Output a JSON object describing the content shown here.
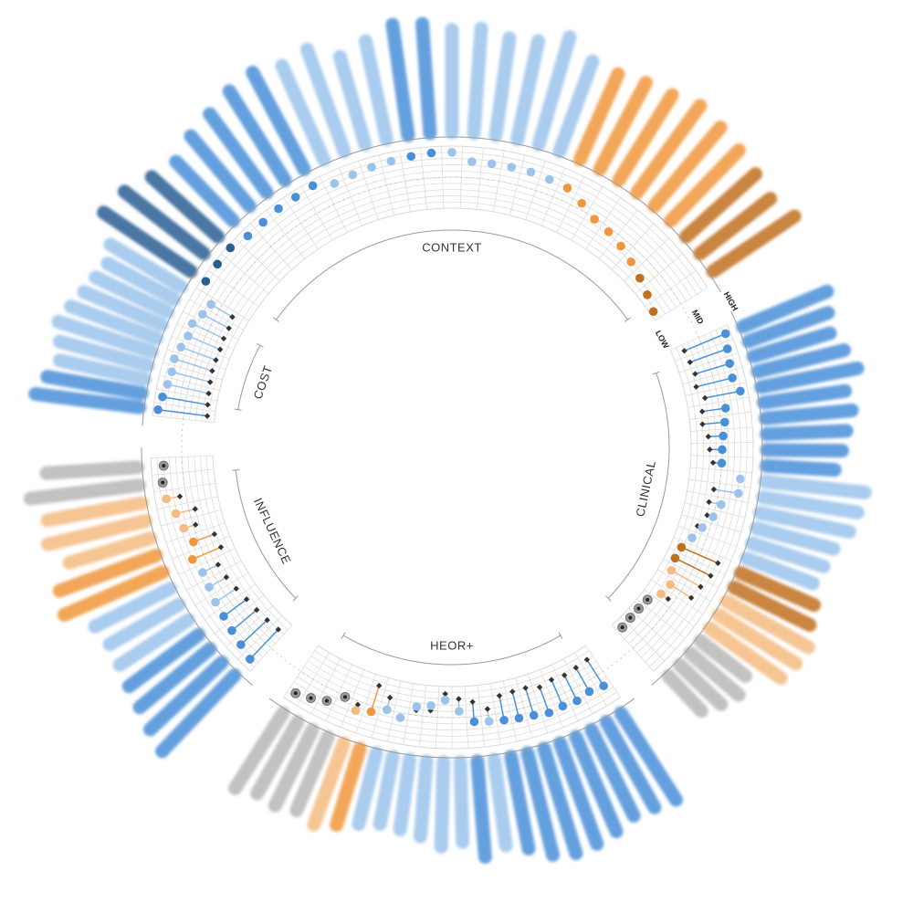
{
  "chart_data": {
    "type": "radial-dumbbell",
    "colors": {
      "blue": "#4a90d9",
      "light_blue": "#9cc3ec",
      "dark_blue": "#2a5d93",
      "orange": "#f0973d",
      "light_orange": "#f5bb82",
      "dark_orange": "#c0701e",
      "gray": "#b8b8b8",
      "grid": "#d9d9d9",
      "marker": "#333333"
    },
    "levels": [
      "LOW",
      "MID",
      "HIGH"
    ],
    "sections": [
      {
        "name": "CONTEXT",
        "start_deg": -58,
        "end_deg": 58,
        "label_deg": 0
      },
      {
        "name": "CLINICAL",
        "start_deg": 66,
        "end_deg": 138,
        "label_deg": 102
      },
      {
        "name": "HEOR+",
        "start_deg": 146,
        "end_deg": 214,
        "label_deg": 180
      },
      {
        "name": "INFLUENCE",
        "start_deg": 222,
        "end_deg": 268,
        "label_deg": 245
      },
      {
        "name": "COST",
        "start_deg": 276,
        "end_deg": 302,
        "label_deg": 289
      }
    ],
    "items": [
      {
        "section": "CONTEXT",
        "a": 0.93,
        "bar": 0.92,
        "color": "dark_blue"
      },
      {
        "section": "CONTEXT",
        "a": 0.94,
        "bar": 0.88,
        "color": "dark_blue"
      },
      {
        "section": "CONTEXT",
        "a": 0.95,
        "bar": 0.78,
        "color": "dark_blue"
      },
      {
        "section": "CONTEXT",
        "a": 0.88,
        "bar": 0.72,
        "color": "blue"
      },
      {
        "section": "CONTEXT",
        "a": 0.88,
        "bar": 0.8,
        "color": "blue"
      },
      {
        "section": "CONTEXT",
        "a": 0.9,
        "bar": 0.85,
        "color": "blue"
      },
      {
        "section": "CONTEXT",
        "a": 0.9,
        "bar": 0.92,
        "color": "blue"
      },
      {
        "section": "CONTEXT",
        "a": 0.92,
        "bar": 0.96,
        "color": "blue"
      },
      {
        "section": "CONTEXT",
        "a": 0.8,
        "bar": 0.9,
        "color": "light_blue"
      },
      {
        "section": "CONTEXT",
        "a": 0.82,
        "bar": 0.95,
        "color": "light_blue"
      },
      {
        "section": "CONTEXT",
        "a": 0.84,
        "bar": 0.8,
        "color": "light_blue"
      },
      {
        "section": "CONTEXT",
        "a": 0.86,
        "bar": 0.88,
        "color": "light_blue"
      },
      {
        "section": "CONTEXT",
        "a": 0.88,
        "bar": 0.98,
        "color": "blue"
      },
      {
        "section": "CONTEXT",
        "a": 0.9,
        "bar": 0.96,
        "color": "blue"
      },
      {
        "section": "CONTEXT",
        "a": 0.9,
        "bar": 0.9,
        "color": "light_blue"
      },
      {
        "section": "CONTEXT",
        "a": 0.76,
        "bar": 0.92,
        "color": "light_blue"
      },
      {
        "section": "CONTEXT",
        "a": 0.76,
        "bar": 0.86,
        "color": "light_blue"
      },
      {
        "section": "CONTEXT",
        "a": 0.76,
        "bar": 0.88,
        "color": "light_blue"
      },
      {
        "section": "CONTEXT",
        "a": 0.76,
        "bar": 0.98,
        "color": "light_blue"
      },
      {
        "section": "CONTEXT",
        "a": 0.74,
        "bar": 0.84,
        "color": "light_blue"
      },
      {
        "section": "CONTEXT",
        "a": 0.72,
        "bar": 0.82,
        "color": "orange"
      },
      {
        "section": "CONTEXT",
        "a": 0.6,
        "bar": 0.86,
        "color": "orange"
      },
      {
        "section": "CONTEXT",
        "a": 0.48,
        "bar": 0.88,
        "color": "orange"
      },
      {
        "section": "CONTEXT",
        "a": 0.44,
        "bar": 0.94,
        "color": "orange"
      },
      {
        "section": "CONTEXT",
        "a": 0.38,
        "bar": 0.9,
        "color": "orange"
      },
      {
        "section": "CONTEXT",
        "a": 0.3,
        "bar": 0.86,
        "color": "orange"
      },
      {
        "section": "CONTEXT",
        "a": 0.22,
        "bar": 0.82,
        "color": "dark_orange"
      },
      {
        "section": "CONTEXT",
        "a": 0.14,
        "bar": 0.78,
        "color": "dark_orange"
      },
      {
        "section": "CONTEXT",
        "a": 0.06,
        "bar": 0.86,
        "color": "dark_orange"
      },
      {
        "section": "CLINICAL",
        "a": 0.92,
        "b": 0.2,
        "bar": 0.8,
        "color": "blue"
      },
      {
        "section": "CLINICAL",
        "a": 0.86,
        "b": 0.22,
        "bar": 0.74,
        "color": "blue"
      },
      {
        "section": "CLINICAL",
        "a": 0.82,
        "b": 0.24,
        "bar": 0.7,
        "color": "blue"
      },
      {
        "section": "CLINICAL",
        "a": 0.8,
        "b": 0.2,
        "bar": 0.78,
        "color": "blue"
      },
      {
        "section": "CLINICAL",
        "a": 0.88,
        "b": 0.3,
        "bar": 0.86,
        "color": "blue"
      },
      {
        "section": "CLINICAL",
        "a": 0.6,
        "b": 0.22,
        "bar": 0.72,
        "color": "blue"
      },
      {
        "section": "CLINICAL",
        "a": 0.56,
        "b": 0.2,
        "bar": 0.76,
        "color": "blue"
      },
      {
        "section": "CLINICAL",
        "a": 0.52,
        "b": 0.28,
        "bar": 0.7,
        "color": "blue"
      },
      {
        "section": "CLINICAL",
        "a": 0.5,
        "b": 0.3,
        "bar": 0.66,
        "color": "blue"
      },
      {
        "section": "CLINICAL",
        "a": 0.5,
        "b": 0.36,
        "bar": 0.6,
        "color": "blue"
      },
      {
        "section": "CLINICAL",
        "a": 0.82,
        "b": 0.82,
        "bar": 0.88,
        "color": "light_blue"
      },
      {
        "section": "CLINICAL",
        "a": 0.82,
        "b": 0.42,
        "bar": 0.84,
        "color": "light_blue"
      },
      {
        "section": "CLINICAL",
        "a": 0.58,
        "b": 0.38,
        "bar": 0.8,
        "color": "light_blue"
      },
      {
        "section": "CLINICAL",
        "a": 0.5,
        "b": 0.4,
        "bar": 0.7,
        "color": "light_blue"
      },
      {
        "section": "CLINICAL",
        "a": 0.38,
        "b": 0.3,
        "bar": 0.66,
        "color": "light_blue"
      },
      {
        "section": "CLINICAL",
        "a": 0.28,
        "b": 0.3,
        "bar": 0.62,
        "color": "light_blue"
      },
      {
        "section": "CLINICAL",
        "a": 0.18,
        "b": 0.82,
        "bar": 0.7,
        "color": "dark_orange"
      },
      {
        "section": "CLINICAL",
        "a": 0.16,
        "b": 0.8,
        "bar": 0.74,
        "color": "dark_orange"
      },
      {
        "section": "CLINICAL",
        "a": 0.2,
        "b": 0.74,
        "bar": 0.82,
        "color": "light_orange"
      },
      {
        "section": "CLINICAL",
        "a": 0.3,
        "b": 0.7,
        "bar": 0.8,
        "color": "light_orange"
      },
      {
        "section": "CLINICAL",
        "a": 0.26,
        "b": 0.4,
        "bar": 0.76,
        "color": "light_orange"
      },
      {
        "section": "CLINICAL",
        "a": 0.14,
        "b": 0.14,
        "bar": 0.5,
        "color": "gray"
      },
      {
        "section": "CLINICAL",
        "a": 0.12,
        "b": 0.12,
        "bar": 0.56,
        "color": "gray"
      },
      {
        "section": "CLINICAL",
        "a": 0.12,
        "b": 0.12,
        "bar": 0.5,
        "color": "gray"
      },
      {
        "section": "CLINICAL",
        "a": 0.14,
        "b": 0.14,
        "bar": 0.42,
        "color": "gray"
      },
      {
        "section": "HEOR+",
        "a": 0.7,
        "b": 0.2,
        "bar": 0.9,
        "color": "blue"
      },
      {
        "section": "HEOR+",
        "a": 0.66,
        "b": 0.22,
        "bar": 0.86,
        "color": "blue"
      },
      {
        "section": "HEOR+",
        "a": 0.7,
        "b": 0.24,
        "bar": 0.84,
        "color": "blue"
      },
      {
        "section": "HEOR+",
        "a": 0.68,
        "b": 0.22,
        "bar": 0.9,
        "color": "blue"
      },
      {
        "section": "HEOR+",
        "a": 0.7,
        "b": 0.26,
        "bar": 0.94,
        "color": "blue"
      },
      {
        "section": "HEOR+",
        "a": 0.66,
        "b": 0.2,
        "bar": 0.96,
        "color": "blue"
      },
      {
        "section": "HEOR+",
        "a": 0.64,
        "b": 0.2,
        "bar": 0.92,
        "color": "blue"
      },
      {
        "section": "HEOR+",
        "a": 0.62,
        "b": 0.22,
        "bar": 0.82,
        "color": "blue"
      },
      {
        "section": "HEOR+",
        "a": 0.6,
        "b": 0.4,
        "bar": 0.76,
        "color": "light_blue"
      },
      {
        "section": "HEOR+",
        "a": 0.58,
        "b": 0.26,
        "bar": 0.84,
        "color": "blue"
      },
      {
        "section": "HEOR+",
        "a": 0.4,
        "b": 0.2,
        "bar": 0.7,
        "color": "light_blue"
      },
      {
        "section": "HEOR+",
        "a": 0.22,
        "b": 0.12,
        "bar": 0.74,
        "color": "light_blue"
      },
      {
        "section": "HEOR+",
        "a": 0.32,
        "b": 0.4,
        "bar": 0.66,
        "color": "light_blue"
      },
      {
        "section": "HEOR+",
        "a": 0.36,
        "b": 0.42,
        "bar": 0.62,
        "color": "light_blue"
      },
      {
        "section": "HEOR+",
        "a": 0.58,
        "b": 0.6,
        "bar": 0.6,
        "color": "light_blue"
      },
      {
        "section": "HEOR+",
        "a": 0.5,
        "b": 0.3,
        "bar": 0.64,
        "color": "light_blue"
      },
      {
        "section": "HEOR+",
        "a": 0.6,
        "b": 0.16,
        "bar": 0.7,
        "color": "orange"
      },
      {
        "section": "HEOR+",
        "a": 0.66,
        "b": 0.56,
        "bar": 0.76,
        "color": "light_orange"
      },
      {
        "section": "HEOR+",
        "a": 0.52,
        "b": 0.52,
        "bar": 0.7,
        "color": "gray"
      },
      {
        "section": "HEOR+",
        "a": 0.7,
        "b": 0.7,
        "bar": 0.74,
        "color": "gray"
      },
      {
        "section": "HEOR+",
        "a": 0.78,
        "b": 0.78,
        "bar": 0.72,
        "color": "gray"
      },
      {
        "section": "HEOR+",
        "a": 0.84,
        "b": 0.84,
        "bar": 0.78,
        "color": "gray"
      },
      {
        "section": "INFLUENCE",
        "a": 0.86,
        "b": 0.2,
        "bar": 0.92,
        "color": "blue"
      },
      {
        "section": "INFLUENCE",
        "a": 0.8,
        "b": 0.22,
        "bar": 0.86,
        "color": "blue"
      },
      {
        "section": "INFLUENCE",
        "a": 0.76,
        "b": 0.24,
        "bar": 0.8,
        "color": "blue"
      },
      {
        "section": "INFLUENCE",
        "a": 0.72,
        "b": 0.26,
        "bar": 0.76,
        "color": "blue"
      },
      {
        "section": "INFLUENCE",
        "a": 0.7,
        "b": 0.3,
        "bar": 0.72,
        "color": "light_blue"
      },
      {
        "section": "INFLUENCE",
        "a": 0.66,
        "b": 0.34,
        "bar": 0.7,
        "color": "light_blue"
      },
      {
        "section": "INFLUENCE",
        "a": 0.64,
        "b": 0.36,
        "bar": 0.74,
        "color": "light_blue"
      },
      {
        "section": "INFLUENCE",
        "a": 0.7,
        "b": 0.2,
        "bar": 0.94,
        "color": "orange"
      },
      {
        "section": "INFLUENCE",
        "a": 0.58,
        "b": 0.22,
        "bar": 0.9,
        "color": "orange"
      },
      {
        "section": "INFLUENCE",
        "a": 0.66,
        "b": 0.46,
        "bar": 0.74,
        "color": "light_orange"
      },
      {
        "section": "INFLUENCE",
        "a": 0.72,
        "b": 0.4,
        "bar": 0.88,
        "color": "light_orange"
      },
      {
        "section": "INFLUENCE",
        "a": 0.82,
        "b": 0.6,
        "bar": 0.84,
        "color": "light_orange"
      },
      {
        "section": "INFLUENCE",
        "a": 0.84,
        "b": 0.84,
        "bar": 0.96,
        "color": "gray"
      },
      {
        "section": "INFLUENCE",
        "a": 0.8,
        "b": 0.8,
        "bar": 0.8,
        "color": "gray"
      },
      {
        "section": "COST",
        "a": 0.92,
        "b": 0.12,
        "bar": 0.92,
        "color": "blue"
      },
      {
        "section": "COST",
        "a": 0.88,
        "b": 0.14,
        "bar": 0.84,
        "color": "blue"
      },
      {
        "section": "COST",
        "a": 0.84,
        "b": 0.16,
        "bar": 0.76,
        "color": "light_blue"
      },
      {
        "section": "COST",
        "a": 0.82,
        "b": 0.18,
        "bar": 0.8,
        "color": "light_blue"
      },
      {
        "section": "COST",
        "a": 0.84,
        "b": 0.2,
        "bar": 0.86,
        "color": "light_blue"
      },
      {
        "section": "COST",
        "a": 0.8,
        "b": 0.2,
        "bar": 0.8,
        "color": "light_blue"
      },
      {
        "section": "COST",
        "a": 0.76,
        "b": 0.2,
        "bar": 0.74,
        "color": "light_blue"
      },
      {
        "section": "COST",
        "a": 0.78,
        "b": 0.22,
        "bar": 0.7,
        "color": "light_blue"
      },
      {
        "section": "COST",
        "a": 0.7,
        "b": 0.22,
        "bar": 0.66,
        "color": "light_blue"
      },
      {
        "section": "COST",
        "a": 0.66,
        "b": 0.26,
        "bar": 0.72,
        "color": "light_blue"
      }
    ]
  }
}
